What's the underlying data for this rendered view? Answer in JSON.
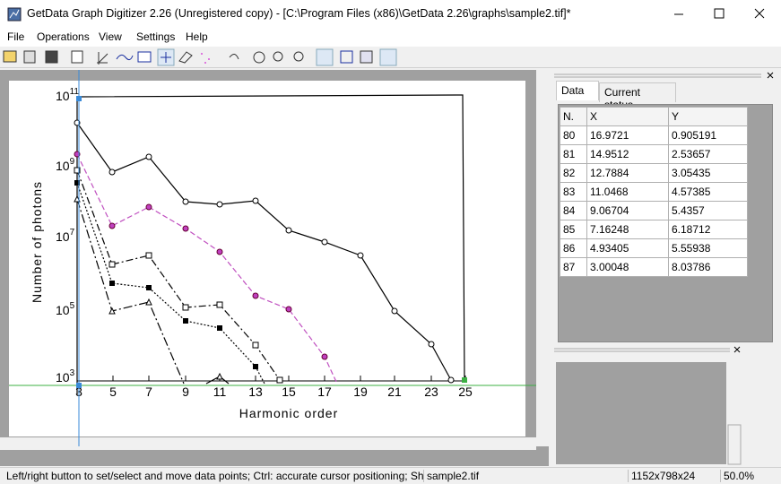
{
  "window": {
    "title": "GetData Graph Digitizer 2.26 (Unregistered copy) - [C:\\Program Files (x86)\\GetData 2.26\\graphs\\sample2.tif]*"
  },
  "menu": [
    "File",
    "Operations",
    "View",
    "Settings",
    "Help"
  ],
  "graph_image": {
    "y_axis_label": "Number of photons",
    "x_axis_label": "Harmonic order",
    "y_tick_labels": [
      {
        "base": "10",
        "exp": "11"
      },
      {
        "base": "10",
        "exp": "9"
      },
      {
        "base": "10",
        "exp": "7"
      },
      {
        "base": "10",
        "exp": "5"
      },
      {
        "base": "10",
        "exp": "3"
      }
    ],
    "x_tick_labels": [
      "3",
      "5",
      "7",
      "9",
      "11",
      "13",
      "15",
      "17",
      "19",
      "21",
      "23",
      "25"
    ]
  },
  "tabs": [
    "Data",
    "Current status"
  ],
  "table": {
    "headers": [
      "N.",
      "X",
      "Y"
    ],
    "rows": [
      [
        "80",
        "16.9721",
        "0.905191"
      ],
      [
        "81",
        "14.9512",
        "2.53657"
      ],
      [
        "82",
        "12.7884",
        "3.05435"
      ],
      [
        "83",
        "11.0468",
        "4.57385"
      ],
      [
        "84",
        "9.06704",
        "5.4357"
      ],
      [
        "85",
        "7.16248",
        "6.18712"
      ],
      [
        "86",
        "4.93405",
        "5.55938"
      ],
      [
        "87",
        "3.00048",
        "8.03786"
      ]
    ]
  },
  "status_bar": [
    "Left/right button to set/select and move data points; Ctrl: accurate cursor positioning; Sh",
    "sample2.tif",
    "1152x798x24",
    "50.0%"
  ]
}
